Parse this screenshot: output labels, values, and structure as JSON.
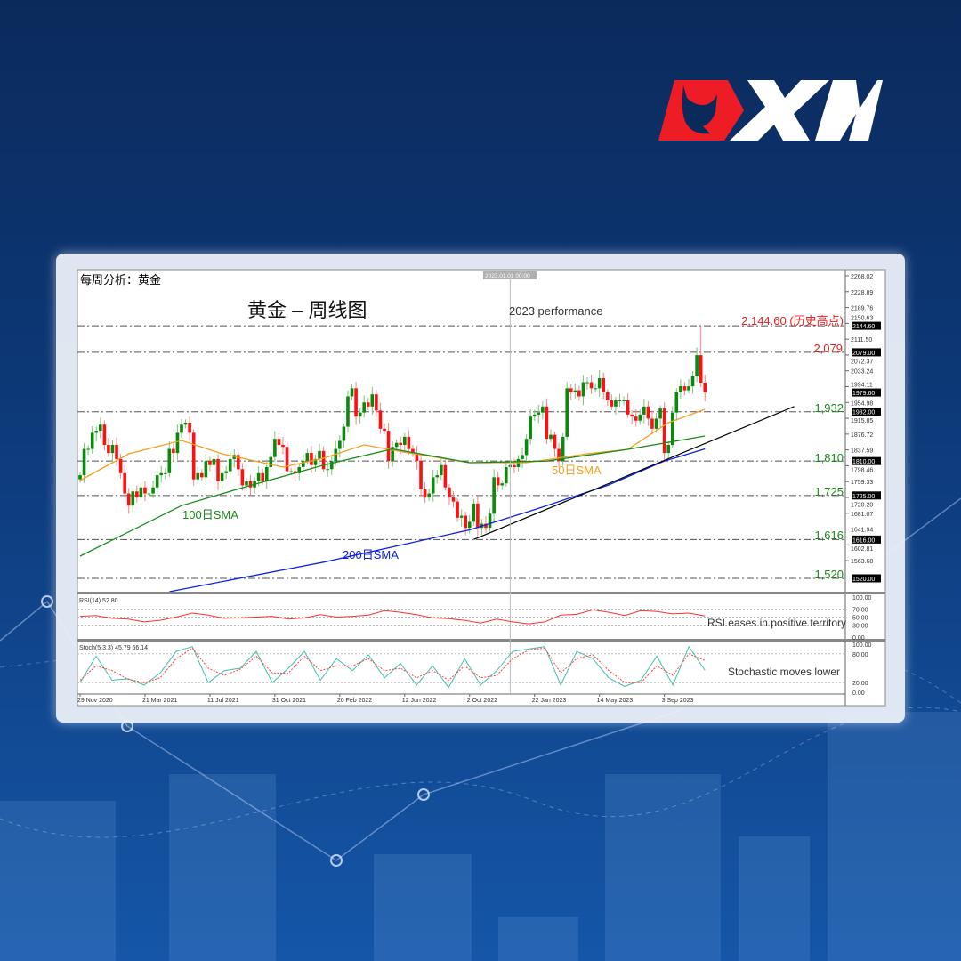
{
  "brand": {
    "logo_text": "XM",
    "colors": {
      "red": "#ee1c24",
      "white": "#ffffff"
    }
  },
  "chart_header": {
    "subtitle": "每周分析：黄金",
    "title": "黄金 – 周线图",
    "section_label": "2023 performance"
  },
  "annotations": {
    "ath": "2,144.60 (历史高点)",
    "r1": "2,079",
    "s1": "1,932",
    "s2": "1,810",
    "s3": "1,725",
    "s4": "1,616",
    "s5": "1,520",
    "sma50": "50日SMA",
    "sma100": "100日SMA",
    "sma200": "200日SMA",
    "rsi_note": "RSI eases in positive territory",
    "stoch_note": "Stochastic moves lower",
    "vline_label": "2023.01.01 00:00"
  },
  "chart_data": {
    "type": "candlestick",
    "timeframe": "weekly",
    "ylim": [
      1487,
      2268.02
    ],
    "grid": false,
    "price_axis": {
      "ticks": [
        "2268.02",
        "2228.89",
        "2189.76",
        "2150.63",
        "2111.50",
        "2072.37",
        "2033.24",
        "1994.11",
        "1954.98",
        "1915.85",
        "1876.72",
        "1837.59",
        "1798.46",
        "1759.33",
        "1720.20",
        "1681.07",
        "1641.94",
        "1602.81",
        "1563.68"
      ],
      "tick_values": [
        2268.02,
        2228.89,
        2189.76,
        2150.63,
        2111.5,
        2072.37,
        2033.24,
        1994.11,
        1954.98,
        1915.85,
        1876.72,
        1837.59,
        1798.46,
        1759.33,
        1720.2,
        1681.07,
        1641.94,
        1602.81,
        1563.68
      ],
      "badges": [
        "2144.60",
        "2079.00",
        "1979.60",
        "1932.00",
        "1810.00",
        "1725.00",
        "1616.00",
        "1520.00"
      ]
    },
    "date_axis": {
      "labels": [
        "29 Nov 2020",
        "21 Mar 2021",
        "11 Jul 2021",
        "31 Oct 2021",
        "20 Feb 2022",
        "12 Jun 2022",
        "2 Oct 2022",
        "22 Jan 2023",
        "14 May 2023",
        "3 Sep 2023"
      ],
      "weeks": [
        0,
        16,
        32,
        48,
        64,
        80,
        96,
        112,
        128,
        144
      ]
    },
    "levels": [
      2144.6,
      2079,
      1932,
      1810,
      1725,
      1616,
      1520
    ],
    "vline_week": 106,
    "closes": [
      1775,
      1840,
      1840,
      1880,
      1885,
      1900,
      1850,
      1830,
      1850,
      1815,
      1780,
      1730,
      1700,
      1735,
      1720,
      1745,
      1730,
      1730,
      1745,
      1775,
      1780,
      1780,
      1840,
      1830,
      1880,
      1900,
      1905,
      1880,
      1765,
      1780,
      1770,
      1810,
      1800,
      1815,
      1760,
      1780,
      1785,
      1815,
      1825,
      1790,
      1750,
      1760,
      1745,
      1760,
      1780,
      1760,
      1795,
      1820,
      1865,
      1850,
      1845,
      1785,
      1785,
      1780,
      1795,
      1810,
      1830,
      1800,
      1815,
      1835,
      1790,
      1790,
      1810,
      1840,
      1860,
      1895,
      1970,
      1990,
      1920,
      1930,
      1955,
      1945,
      1975,
      1935,
      1890,
      1885,
      1810,
      1845,
      1855,
      1850,
      1870,
      1840,
      1830,
      1810,
      1740,
      1720,
      1730,
      1770,
      1775,
      1800,
      1745,
      1720,
      1710,
      1670,
      1675,
      1645,
      1660,
      1705,
      1645,
      1655,
      1645,
      1680,
      1770,
      1750,
      1755,
      1795,
      1800,
      1795,
      1815,
      1825,
      1865,
      1920,
      1925,
      1930,
      1945,
      1865,
      1875,
      1840,
      1810,
      1870,
      1990,
      1980,
      1985,
      1970,
      2005,
      2005,
      1990,
      1990,
      2015,
      1980,
      1960,
      1945,
      1960,
      1960,
      1960,
      1925,
      1920,
      1910,
      1925,
      1945,
      1915,
      1890,
      1915,
      1940,
      1830,
      1850,
      1930,
      1980,
      1995,
      1985,
      1995,
      2020,
      2072,
      2004,
      1979.6
    ],
    "peak_high": 2144.6,
    "sma": [
      {
        "name": "50日SMA",
        "color": "#f5a020",
        "points": [
          [
            0,
            1762
          ],
          [
            12,
            1828
          ],
          [
            25,
            1861
          ],
          [
            35,
            1828
          ],
          [
            50,
            1795
          ],
          [
            60,
            1817
          ],
          [
            70,
            1850
          ],
          [
            80,
            1832
          ],
          [
            96,
            1806
          ],
          [
            110,
            1806
          ],
          [
            125,
            1828
          ],
          [
            135,
            1839
          ],
          [
            145,
            1905
          ],
          [
            154,
            1938
          ]
        ]
      },
      {
        "name": "100日SMA",
        "color": "#1a8a1a",
        "points": [
          [
            0,
            1575
          ],
          [
            25,
            1700
          ],
          [
            40,
            1744
          ],
          [
            60,
            1800
          ],
          [
            77,
            1840
          ],
          [
            96,
            1806
          ],
          [
            115,
            1810
          ],
          [
            135,
            1839
          ],
          [
            154,
            1872
          ]
        ]
      },
      {
        "name": "200日SMA",
        "color": "#1020e0",
        "points": [
          [
            22,
            1487
          ],
          [
            60,
            1560
          ],
          [
            96,
            1640
          ],
          [
            112,
            1690
          ],
          [
            130,
            1750
          ],
          [
            144,
            1810
          ],
          [
            154,
            1840
          ]
        ]
      }
    ],
    "trendline": {
      "color": "#000000",
      "points": [
        [
          97,
          1616
        ],
        [
          176,
          1945
        ]
      ]
    },
    "rsi": {
      "label": "RSI(14) 52.80",
      "ticks": [
        "100.00",
        "70.00",
        "50.00",
        "30.00",
        "0.00"
      ],
      "tick_values": [
        100,
        70,
        50,
        30,
        0
      ],
      "color": "#ff3030",
      "values": [
        52,
        54,
        47,
        45,
        38,
        42,
        50,
        60,
        55,
        47,
        48,
        50,
        52,
        45,
        48,
        56,
        50,
        52,
        55,
        66,
        62,
        56,
        48,
        46,
        42,
        35,
        45,
        38,
        33,
        38,
        55,
        57,
        68,
        62,
        54,
        66,
        64,
        58,
        60,
        52.8
      ]
    },
    "stoch": {
      "label": "Stoch(5,3,3) 45.79 66.14",
      "ticks": [
        "100.00",
        "80.00",
        "20.00",
        "0.00"
      ],
      "tick_values": [
        100,
        80,
        20,
        0
      ],
      "k_color": "#40c0b0",
      "d_color": "#ff4040",
      "k": [
        20,
        75,
        25,
        28,
        15,
        40,
        85,
        95,
        20,
        45,
        50,
        85,
        20,
        50,
        85,
        25,
        70,
        45,
        78,
        30,
        60,
        15,
        55,
        10,
        70,
        15,
        45,
        85,
        90,
        95,
        15,
        85,
        70,
        30,
        12,
        25,
        75,
        15,
        95,
        45.79
      ],
      "d": [
        25,
        55,
        45,
        27,
        20,
        30,
        70,
        92,
        50,
        35,
        48,
        75,
        40,
        40,
        75,
        45,
        55,
        55,
        70,
        45,
        50,
        30,
        45,
        25,
        55,
        30,
        35,
        70,
        88,
        92,
        40,
        70,
        78,
        45,
        20,
        20,
        55,
        35,
        80,
        66.14
      ]
    }
  }
}
